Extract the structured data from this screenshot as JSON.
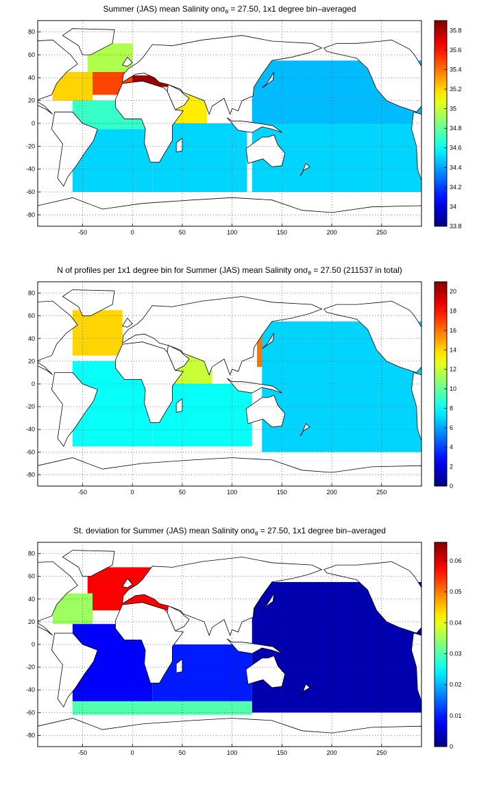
{
  "chart_data": [
    {
      "type": "heatmap",
      "title_parts": [
        "Summer (JAS) mean Salinity on",
        "σ",
        "θ",
        " = 27.50, 1x1 degree bin–averaged"
      ],
      "xlim": [
        -95,
        290
      ],
      "ylim": [
        -90,
        90
      ],
      "xticks": [
        "-50",
        "0",
        "50",
        "100",
        "150",
        "200",
        "250"
      ],
      "yticks": [
        "80",
        "60",
        "40",
        "20",
        "0",
        "-20",
        "-40",
        "-60",
        "-80"
      ],
      "grid": true,
      "colorbar": {
        "range": [
          33.8,
          35.9
        ],
        "ticks": [
          "35.8",
          "35.6",
          "35.4",
          "35.2",
          "35",
          "34.8",
          "34.6",
          "34.4",
          "34.2",
          "34",
          "33.8"
        ]
      },
      "colormap": "jet",
      "regions": [
        {
          "lon": [
            -10,
            40
          ],
          "lat": [
            32,
            42
          ],
          "value": 35.85
        },
        {
          "lon": [
            -40,
            0
          ],
          "lat": [
            25,
            45
          ],
          "value": 35.5
        },
        {
          "lon": [
            -80,
            -40
          ],
          "lat": [
            20,
            45
          ],
          "value": 35.2
        },
        {
          "lon": [
            -45,
            0
          ],
          "lat": [
            45,
            70
          ],
          "value": 34.95
        },
        {
          "lon": [
            40,
            75
          ],
          "lat": [
            0,
            25
          ],
          "value": 35.15
        },
        {
          "lon": [
            -60,
            15
          ],
          "lat": [
            -5,
            20
          ],
          "value": 34.7
        },
        {
          "lon": [
            -60,
            20
          ],
          "lat": [
            -60,
            -5
          ],
          "value": 34.5
        },
        {
          "lon": [
            20,
            115
          ],
          "lat": [
            -60,
            0
          ],
          "value": 34.5
        },
        {
          "lon": [
            120,
            290
          ],
          "lat": [
            0,
            55
          ],
          "value": 34.45
        },
        {
          "lon": [
            120,
            290
          ],
          "lat": [
            -60,
            0
          ],
          "value": 34.5
        }
      ]
    },
    {
      "type": "heatmap",
      "title_parts": [
        "N of profiles per 1x1 degree bin for Summer (JAS) mean Salinity on",
        "σ",
        "θ",
        " = 27.50 (211537 in total)"
      ],
      "xlim": [
        -95,
        290
      ],
      "ylim": [
        -90,
        90
      ],
      "xticks": [
        "-50",
        "0",
        "50",
        "100",
        "150",
        "200",
        "250"
      ],
      "yticks": [
        "80",
        "60",
        "40",
        "20",
        "0",
        "-20",
        "-40",
        "-60",
        "-80"
      ],
      "grid": true,
      "colorbar": {
        "range": [
          0,
          21
        ],
        "ticks": [
          "20",
          "18",
          "16",
          "14",
          "12",
          "10",
          "8",
          "6",
          "4",
          "2",
          "0"
        ]
      },
      "colormap": "jet",
      "regions": [
        {
          "lon": [
            -60,
            -10
          ],
          "lat": [
            25,
            65
          ],
          "value": 14
        },
        {
          "lon": [
            125,
            180
          ],
          "lat": [
            15,
            45
          ],
          "value": 16
        },
        {
          "lon": [
            40,
            80
          ],
          "lat": [
            0,
            25
          ],
          "value": 12
        },
        {
          "lon": [
            -60,
            20
          ],
          "lat": [
            -55,
            20
          ],
          "value": 8
        },
        {
          "lon": [
            20,
            120
          ],
          "lat": [
            -55,
            0
          ],
          "value": 8
        },
        {
          "lon": [
            130,
            290
          ],
          "lat": [
            -60,
            55
          ],
          "value": 7
        }
      ]
    },
    {
      "type": "heatmap",
      "title_parts": [
        "St. deviation for Summer (JAS) mean Salinity on",
        "σ",
        "θ",
        " = 27.50, 1x1 degree bin–averaged"
      ],
      "xlim": [
        -95,
        290
      ],
      "ylim": [
        -90,
        90
      ],
      "xticks": [
        "-50",
        "0",
        "50",
        "100",
        "150",
        "200",
        "250"
      ],
      "yticks": [
        "80",
        "60",
        "40",
        "20",
        "0",
        "-20",
        "-40",
        "-60",
        "-80"
      ],
      "grid": true,
      "colorbar": {
        "range": [
          0,
          0.066
        ],
        "ticks": [
          "0.06",
          "0.05",
          "0.04",
          "0.03",
          "0.02",
          "0.01",
          "0"
        ]
      },
      "colormap": "jet",
      "regions": [
        {
          "lon": [
            -45,
            40
          ],
          "lat": [
            30,
            68
          ],
          "value": 0.058
        },
        {
          "lon": [
            -80,
            -40
          ],
          "lat": [
            18,
            45
          ],
          "value": 0.035
        },
        {
          "lon": [
            -60,
            20
          ],
          "lat": [
            -55,
            18
          ],
          "value": 0.008
        },
        {
          "lon": [
            20,
            120
          ],
          "lat": [
            -55,
            0
          ],
          "value": 0.01
        },
        {
          "lon": [
            120,
            290
          ],
          "lat": [
            -60,
            55
          ],
          "value": 0.003
        },
        {
          "lon": [
            -60,
            120
          ],
          "lat": [
            -62,
            -50
          ],
          "value": 0.03
        }
      ]
    }
  ]
}
